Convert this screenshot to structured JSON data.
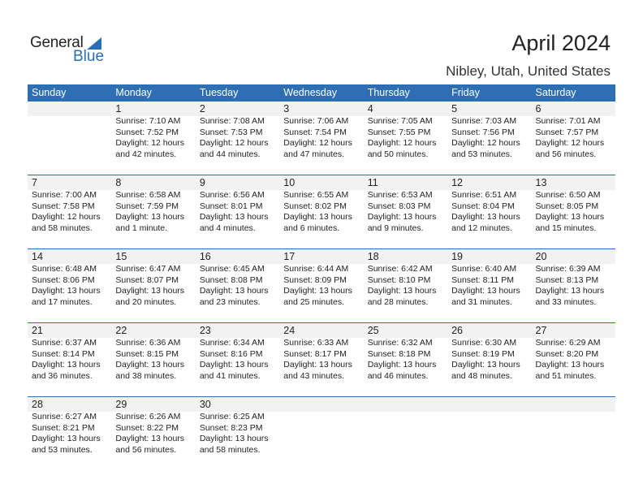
{
  "brand": {
    "general": "General",
    "blue": "Blue"
  },
  "title": "April 2024",
  "location": "Nibley, Utah, United States",
  "colors": {
    "accent": "#2e6fb4",
    "band": "#f2f2f2"
  },
  "weekdays": [
    "Sunday",
    "Monday",
    "Tuesday",
    "Wednesday",
    "Thursday",
    "Friday",
    "Saturday"
  ],
  "weeks": [
    [
      null,
      {
        "day": "1",
        "sunrise": "Sunrise: 7:10 AM",
        "sunset": "Sunset: 7:52 PM",
        "daylight": "Daylight: 12 hours",
        "minutes": "and 42 minutes."
      },
      {
        "day": "2",
        "sunrise": "Sunrise: 7:08 AM",
        "sunset": "Sunset: 7:53 PM",
        "daylight": "Daylight: 12 hours",
        "minutes": "and 44 minutes."
      },
      {
        "day": "3",
        "sunrise": "Sunrise: 7:06 AM",
        "sunset": "Sunset: 7:54 PM",
        "daylight": "Daylight: 12 hours",
        "minutes": "and 47 minutes."
      },
      {
        "day": "4",
        "sunrise": "Sunrise: 7:05 AM",
        "sunset": "Sunset: 7:55 PM",
        "daylight": "Daylight: 12 hours",
        "minutes": "and 50 minutes."
      },
      {
        "day": "5",
        "sunrise": "Sunrise: 7:03 AM",
        "sunset": "Sunset: 7:56 PM",
        "daylight": "Daylight: 12 hours",
        "minutes": "and 53 minutes."
      },
      {
        "day": "6",
        "sunrise": "Sunrise: 7:01 AM",
        "sunset": "Sunset: 7:57 PM",
        "daylight": "Daylight: 12 hours",
        "minutes": "and 56 minutes."
      }
    ],
    [
      {
        "day": "7",
        "sunrise": "Sunrise: 7:00 AM",
        "sunset": "Sunset: 7:58 PM",
        "daylight": "Daylight: 12 hours",
        "minutes": "and 58 minutes."
      },
      {
        "day": "8",
        "sunrise": "Sunrise: 6:58 AM",
        "sunset": "Sunset: 7:59 PM",
        "daylight": "Daylight: 13 hours",
        "minutes": "and 1 minute."
      },
      {
        "day": "9",
        "sunrise": "Sunrise: 6:56 AM",
        "sunset": "Sunset: 8:01 PM",
        "daylight": "Daylight: 13 hours",
        "minutes": "and 4 minutes."
      },
      {
        "day": "10",
        "sunrise": "Sunrise: 6:55 AM",
        "sunset": "Sunset: 8:02 PM",
        "daylight": "Daylight: 13 hours",
        "minutes": "and 6 minutes."
      },
      {
        "day": "11",
        "sunrise": "Sunrise: 6:53 AM",
        "sunset": "Sunset: 8:03 PM",
        "daylight": "Daylight: 13 hours",
        "minutes": "and 9 minutes."
      },
      {
        "day": "12",
        "sunrise": "Sunrise: 6:51 AM",
        "sunset": "Sunset: 8:04 PM",
        "daylight": "Daylight: 13 hours",
        "minutes": "and 12 minutes."
      },
      {
        "day": "13",
        "sunrise": "Sunrise: 6:50 AM",
        "sunset": "Sunset: 8:05 PM",
        "daylight": "Daylight: 13 hours",
        "minutes": "and 15 minutes."
      }
    ],
    [
      {
        "day": "14",
        "sunrise": "Sunrise: 6:48 AM",
        "sunset": "Sunset: 8:06 PM",
        "daylight": "Daylight: 13 hours",
        "minutes": "and 17 minutes."
      },
      {
        "day": "15",
        "sunrise": "Sunrise: 6:47 AM",
        "sunset": "Sunset: 8:07 PM",
        "daylight": "Daylight: 13 hours",
        "minutes": "and 20 minutes."
      },
      {
        "day": "16",
        "sunrise": "Sunrise: 6:45 AM",
        "sunset": "Sunset: 8:08 PM",
        "daylight": "Daylight: 13 hours",
        "minutes": "and 23 minutes."
      },
      {
        "day": "17",
        "sunrise": "Sunrise: 6:44 AM",
        "sunset": "Sunset: 8:09 PM",
        "daylight": "Daylight: 13 hours",
        "minutes": "and 25 minutes."
      },
      {
        "day": "18",
        "sunrise": "Sunrise: 6:42 AM",
        "sunset": "Sunset: 8:10 PM",
        "daylight": "Daylight: 13 hours",
        "minutes": "and 28 minutes."
      },
      {
        "day": "19",
        "sunrise": "Sunrise: 6:40 AM",
        "sunset": "Sunset: 8:11 PM",
        "daylight": "Daylight: 13 hours",
        "minutes": "and 31 minutes."
      },
      {
        "day": "20",
        "sunrise": "Sunrise: 6:39 AM",
        "sunset": "Sunset: 8:13 PM",
        "daylight": "Daylight: 13 hours",
        "minutes": "and 33 minutes."
      }
    ],
    [
      {
        "day": "21",
        "sunrise": "Sunrise: 6:37 AM",
        "sunset": "Sunset: 8:14 PM",
        "daylight": "Daylight: 13 hours",
        "minutes": "and 36 minutes."
      },
      {
        "day": "22",
        "sunrise": "Sunrise: 6:36 AM",
        "sunset": "Sunset: 8:15 PM",
        "daylight": "Daylight: 13 hours",
        "minutes": "and 38 minutes."
      },
      {
        "day": "23",
        "sunrise": "Sunrise: 6:34 AM",
        "sunset": "Sunset: 8:16 PM",
        "daylight": "Daylight: 13 hours",
        "minutes": "and 41 minutes."
      },
      {
        "day": "24",
        "sunrise": "Sunrise: 6:33 AM",
        "sunset": "Sunset: 8:17 PM",
        "daylight": "Daylight: 13 hours",
        "minutes": "and 43 minutes."
      },
      {
        "day": "25",
        "sunrise": "Sunrise: 6:32 AM",
        "sunset": "Sunset: 8:18 PM",
        "daylight": "Daylight: 13 hours",
        "minutes": "and 46 minutes."
      },
      {
        "day": "26",
        "sunrise": "Sunrise: 6:30 AM",
        "sunset": "Sunset: 8:19 PM",
        "daylight": "Daylight: 13 hours",
        "minutes": "and 48 minutes."
      },
      {
        "day": "27",
        "sunrise": "Sunrise: 6:29 AM",
        "sunset": "Sunset: 8:20 PM",
        "daylight": "Daylight: 13 hours",
        "minutes": "and 51 minutes."
      }
    ],
    [
      {
        "day": "28",
        "sunrise": "Sunrise: 6:27 AM",
        "sunset": "Sunset: 8:21 PM",
        "daylight": "Daylight: 13 hours",
        "minutes": "and 53 minutes."
      },
      {
        "day": "29",
        "sunrise": "Sunrise: 6:26 AM",
        "sunset": "Sunset: 8:22 PM",
        "daylight": "Daylight: 13 hours",
        "minutes": "and 56 minutes."
      },
      {
        "day": "30",
        "sunrise": "Sunrise: 6:25 AM",
        "sunset": "Sunset: 8:23 PM",
        "daylight": "Daylight: 13 hours",
        "minutes": "and 58 minutes."
      },
      null,
      null,
      null,
      null
    ]
  ]
}
